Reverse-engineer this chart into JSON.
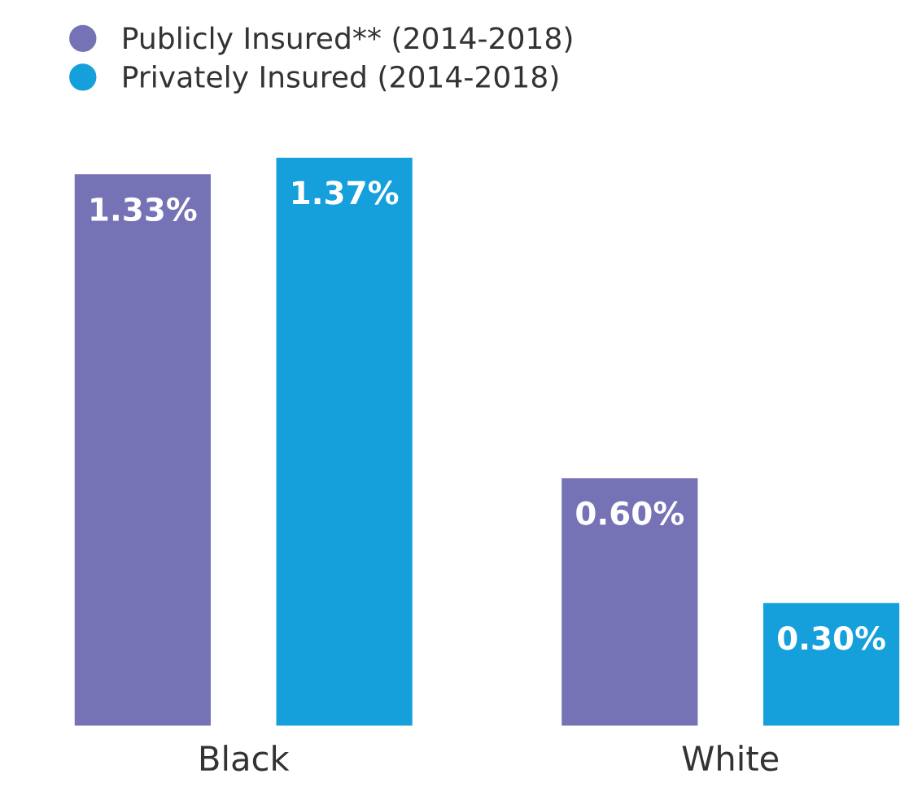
{
  "chart_data": {
    "type": "bar",
    "categories": [
      "Black",
      "White"
    ],
    "series": [
      {
        "name": "Publicly Insured** (2014-2018)",
        "color": "#7672b6",
        "values": [
          1.33,
          0.6
        ],
        "value_labels": [
          "1.33%",
          "0.60%"
        ]
      },
      {
        "name": "Privately Insured (2014-2018)",
        "color": "#15a0db",
        "values": [
          1.37,
          0.3
        ],
        "value_labels": [
          "1.37%",
          "0.30%"
        ]
      }
    ],
    "legend": "top left",
    "grid": false
  }
}
